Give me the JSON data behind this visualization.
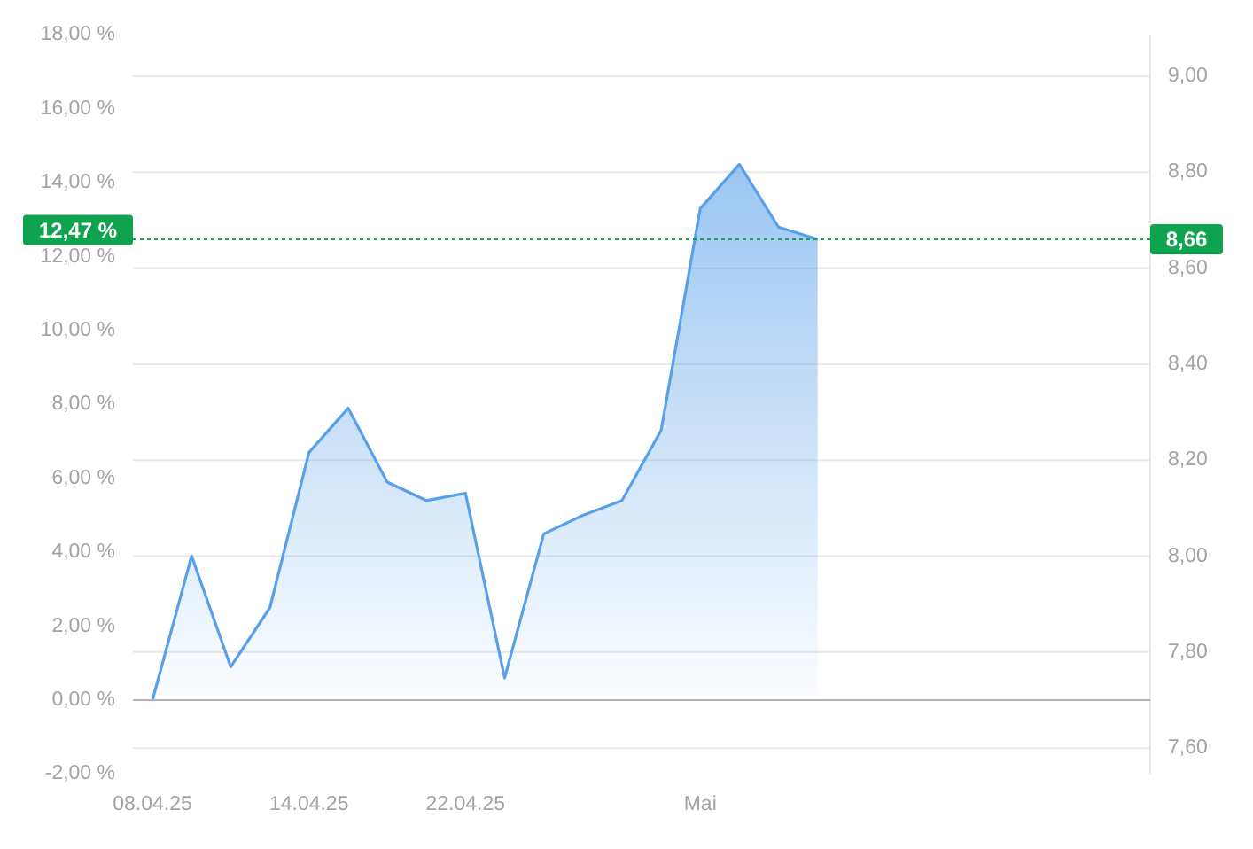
{
  "chart_data": {
    "type": "area",
    "categories": [
      "08.04.25",
      null,
      null,
      null,
      "14.04.25",
      null,
      null,
      null,
      "22.04.25",
      null,
      null,
      null,
      null,
      null,
      "Mai",
      null,
      null,
      null,
      null,
      null,
      null,
      null,
      null,
      null,
      null,
      null
    ],
    "values": [
      0,
      3.9,
      0.9,
      2.5,
      6.7,
      7.9,
      5.9,
      5.4,
      5.6,
      0.6,
      4.5,
      5.0,
      5.4,
      7.3,
      13.3,
      14.5,
      12.8,
      12.47,
      null,
      null,
      null,
      null,
      null,
      null,
      null,
      null
    ],
    "color": "#58a0ea",
    "ylim": [
      -2,
      18
    ],
    "yticks": [
      {
        "value": -2,
        "label": "-2,00 %"
      },
      {
        "value": 0,
        "label": "0,00 %"
      },
      {
        "value": 2,
        "label": "2,00 %"
      },
      {
        "value": 4,
        "label": "4,00 %"
      },
      {
        "value": 6,
        "label": "6,00 %"
      },
      {
        "value": 8,
        "label": "8,00 %"
      },
      {
        "value": 10,
        "label": "10,00 %"
      },
      {
        "value": 12,
        "label": "12,00 %"
      },
      {
        "value": 14,
        "label": "14,00 %"
      },
      {
        "value": 16,
        "label": "16,00 %"
      },
      {
        "value": 18,
        "label": "18,00 %"
      }
    ],
    "y2lim": [
      7.546,
      9.086
    ],
    "y2ticks": [
      {
        "value": 7.6,
        "label": "7,60"
      },
      {
        "value": 7.8,
        "label": "7,80"
      },
      {
        "value": 8.0,
        "label": "8,00"
      },
      {
        "value": 8.2,
        "label": "8,20"
      },
      {
        "value": 8.4,
        "label": "8,40"
      },
      {
        "value": 8.6,
        "label": "8,60"
      },
      {
        "value": 8.8,
        "label": "8,80"
      },
      {
        "value": 9.0,
        "label": "9,00"
      }
    ],
    "grid": "y2",
    "ref_lines": [
      {
        "axis": "y",
        "value": 0,
        "color": "#b3b3b3",
        "line_style": "solid"
      },
      {
        "axis": "y2",
        "value": 8.66,
        "label": "8,66",
        "color": "#10a34f",
        "line_style": "dotted"
      }
    ],
    "annotations": [
      "12,47 %"
    ]
  }
}
